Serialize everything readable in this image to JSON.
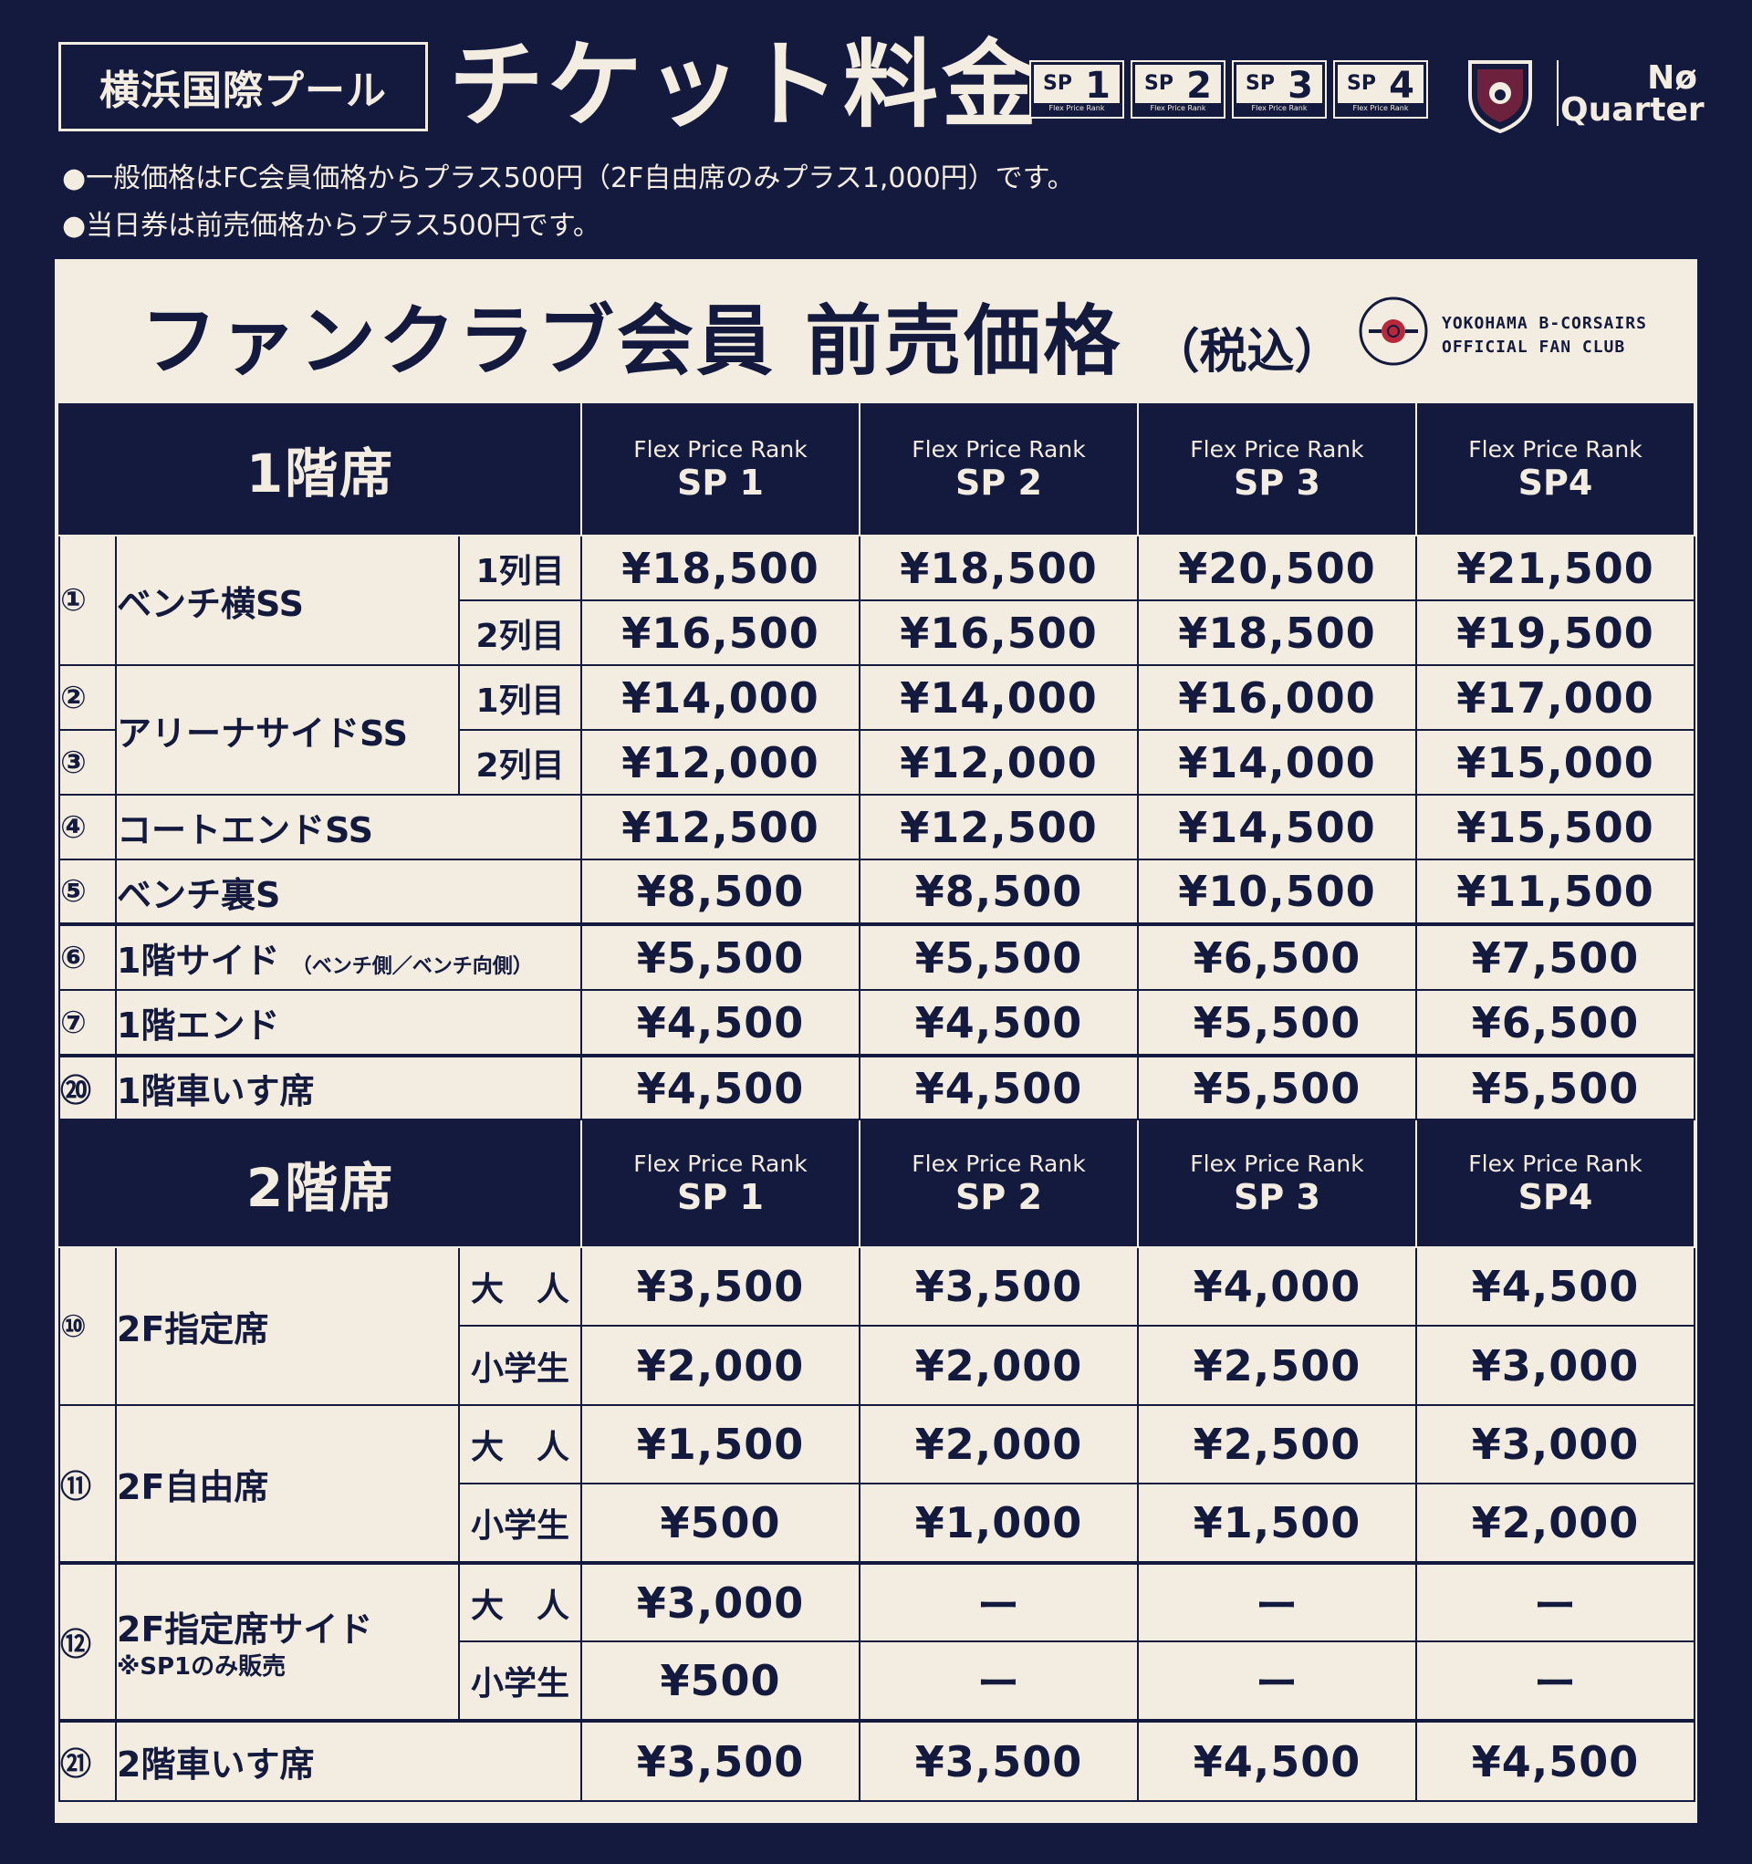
{
  "header": {
    "venue": "横浜国際プール",
    "title": "チケット料金",
    "sp_badges": [
      {
        "sp": "SP",
        "num": "1",
        "caption": "Flex Price Rank"
      },
      {
        "sp": "SP",
        "num": "2",
        "caption": "Flex Price Rank"
      },
      {
        "sp": "SP",
        "num": "3",
        "caption": "Flex Price Rank"
      },
      {
        "sp": "SP",
        "num": "4",
        "caption": "Flex Price Rank"
      }
    ],
    "brand_line1": "Nø",
    "brand_line2": "Quarter"
  },
  "notes": [
    "●一般価格はFC会員価格からプラス500円（2F自由席のみプラス1,000円）です。",
    "●当日券は前売価格からプラス500円です。"
  ],
  "panel": {
    "title": "ファンクラブ会員 前売価格",
    "title_suffix": "（税込）",
    "fc_line1": "YOKOHAMA B-CORSAIRS",
    "fc_line2": "OFFICIAL FAN CLUB"
  },
  "columns": [
    {
      "caption": "Flex Price Rank",
      "rank": "SP 1"
    },
    {
      "caption": "Flex Price Rank",
      "rank": "SP 2"
    },
    {
      "caption": "Flex Price Rank",
      "rank": "SP 3"
    },
    {
      "caption": "Flex Price Rank",
      "rank": "SP4"
    }
  ],
  "floor1": {
    "label": "1階席",
    "rows": [
      {
        "num": "①",
        "name": "ベンチ横SS",
        "sub": "1列目",
        "prices": [
          "¥18,500",
          "¥18,500",
          "¥20,500",
          "¥21,500"
        ]
      },
      {
        "sub": "2列目",
        "prices": [
          "¥16,500",
          "¥16,500",
          "¥18,500",
          "¥19,500"
        ]
      },
      {
        "num": "②",
        "name": "アリーナサイドSS",
        "sub": "1列目",
        "prices": [
          "¥14,000",
          "¥14,000",
          "¥16,000",
          "¥17,000"
        ]
      },
      {
        "num": "③",
        "sub": "2列目",
        "prices": [
          "¥12,000",
          "¥12,000",
          "¥14,000",
          "¥15,000"
        ]
      },
      {
        "num": "④",
        "name": "コートエンドSS",
        "prices": [
          "¥12,500",
          "¥12,500",
          "¥14,500",
          "¥15,500"
        ]
      },
      {
        "num": "⑤",
        "name": "ベンチ裏S",
        "prices": [
          "¥8,500",
          "¥8,500",
          "¥10,500",
          "¥11,500"
        ]
      },
      {
        "num": "⑥",
        "name": "1階サイド",
        "note": "（ベンチ側／ベンチ向側）",
        "prices": [
          "¥5,500",
          "¥5,500",
          "¥6,500",
          "¥7,500"
        ]
      },
      {
        "num": "⑦",
        "name": "1階エンド",
        "prices": [
          "¥4,500",
          "¥4,500",
          "¥5,500",
          "¥6,500"
        ]
      },
      {
        "num": "⑳",
        "name": "1階車いす席",
        "prices": [
          "¥4,500",
          "¥4,500",
          "¥5,500",
          "¥5,500"
        ]
      }
    ]
  },
  "floor2": {
    "label": "2階席",
    "rows": [
      {
        "num": "⑩",
        "name": "2F指定席",
        "sub": "大　人",
        "prices": [
          "¥3,500",
          "¥3,500",
          "¥4,000",
          "¥4,500"
        ]
      },
      {
        "sub": "小学生",
        "prices": [
          "¥2,000",
          "¥2,000",
          "¥2,500",
          "¥3,000"
        ]
      },
      {
        "num": "⑪",
        "name": "2F自由席",
        "sub": "大　人",
        "prices": [
          "¥1,500",
          "¥2,000",
          "¥2,500",
          "¥3,000"
        ]
      },
      {
        "sub": "小学生",
        "prices": [
          "¥500",
          "¥1,000",
          "¥1,500",
          "¥2,000"
        ]
      },
      {
        "num": "⑫",
        "name": "2F指定席サイド",
        "note": "※SP1のみ販売",
        "sub": "大　人",
        "prices": [
          "¥3,000",
          "ー",
          "ー",
          "ー"
        ]
      },
      {
        "sub": "小学生",
        "prices": [
          "¥500",
          "ー",
          "ー",
          "ー"
        ]
      },
      {
        "num": "㉑",
        "name": "2階車いす席",
        "prices": [
          "¥3,500",
          "¥3,500",
          "¥4,500",
          "¥4,500"
        ]
      }
    ]
  },
  "colors": {
    "navy": "#141a3e",
    "cream": "#f3ede1",
    "accent_red": "#b7283a"
  }
}
